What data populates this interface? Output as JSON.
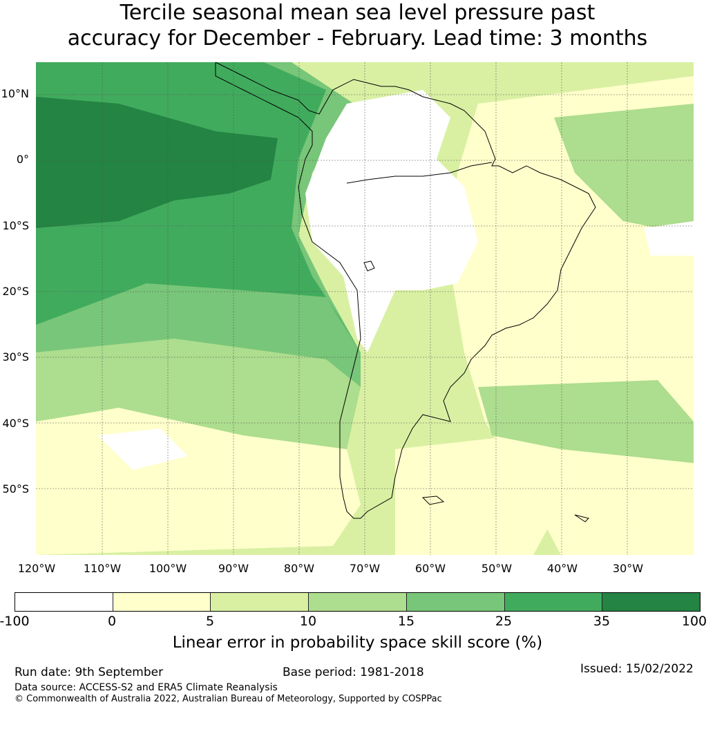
{
  "title_line1": "Tercile seasonal mean sea level pressure past",
  "title_line2": "accuracy for December - February. Lead time: 3 months",
  "latitude_labels": [
    "10°N",
    "0°",
    "10°S",
    "20°S",
    "30°S",
    "40°S",
    "50°S"
  ],
  "longitude_labels": [
    "120°W",
    "110°W",
    "100°W",
    "90°W",
    "80°W",
    "70°W",
    "60°W",
    "50°W",
    "40°W",
    "30°W"
  ],
  "colorbar": {
    "ticks": [
      "-100",
      "0",
      "5",
      "10",
      "15",
      "25",
      "35",
      "100"
    ],
    "colors": [
      "#ffffff",
      "#ffffcc",
      "#d9f0a3",
      "#addd8e",
      "#78c679",
      "#41ab5d",
      "#238443"
    ],
    "label": "Linear error in probability space skill score (%)"
  },
  "footer": {
    "run_date": "Run date: 9th September",
    "base_period": "Base period: 1981-2018",
    "issued": "Issued: 15/02/2022",
    "data_source": "Data source: ACCESS-S2 and ERA5 Climate Reanalysis",
    "copyright": "© Commonwealth of Australia 2022, Australian Bureau of Meteorology, Supported by COSPPac"
  }
}
